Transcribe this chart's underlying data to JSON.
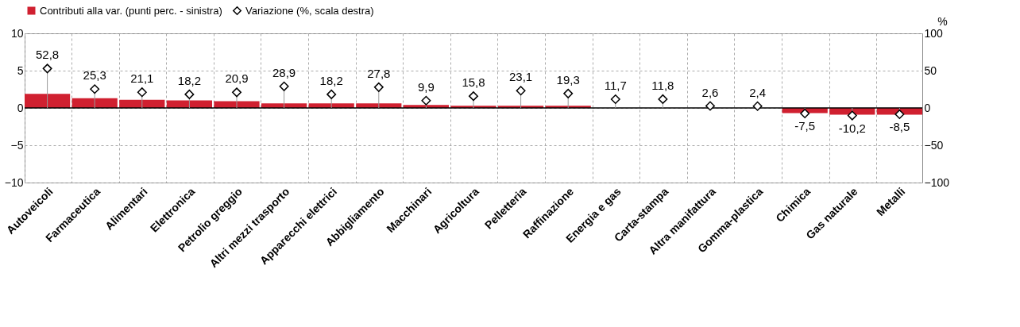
{
  "chart_data": {
    "type": "bar",
    "categories": [
      "Autoveicoli",
      "Farmaceutica",
      "Alimentari",
      "Elettronica",
      "Petrolio greggio",
      "Altri mezzi trasporto",
      "Apparecchi elettrici",
      "Abbigliamento",
      "Macchinari",
      "Agricoltura",
      "Pelletteria",
      "Raffinazione",
      "Energia e gas",
      "Carta-stampa",
      "Altra manifattura",
      "Gomma-plastica",
      "Chimica",
      "Gas naturale",
      "Metalli"
    ],
    "series": [
      {
        "name": "Contributi alla var. (punti perc. - sinistra)",
        "color": "#d02030",
        "values": [
          1.9,
          1.3,
          1.1,
          1.0,
          0.9,
          0.6,
          0.6,
          0.6,
          0.4,
          0.3,
          0.3,
          0.3,
          0.0,
          0.0,
          0.0,
          0.0,
          -0.7,
          -0.9,
          -0.9
        ]
      },
      {
        "name": "Variazione (%, scala destra)",
        "type": "lollipop",
        "axis": "y2",
        "marker": "diamond",
        "color": "#000000",
        "values": [
          52.8,
          25.3,
          21.1,
          18.2,
          20.9,
          28.9,
          18.2,
          27.8,
          9.9,
          15.8,
          23.1,
          19.3,
          11.7,
          11.8,
          2.6,
          2.4,
          -7.5,
          -10.2,
          -8.5
        ],
        "value_labels": [
          "52,8",
          "25,3",
          "21,1",
          "18,2",
          "20,9",
          "28,9",
          "18,2",
          "27,8",
          "9,9",
          "15,8",
          "23,1",
          "19,3",
          "11,7",
          "11,8",
          "2,6",
          "2,4",
          "-7,5",
          "-10,2",
          "-8,5"
        ]
      }
    ],
    "ylim": [
      -10,
      10
    ],
    "yticks": [
      -10,
      -5,
      0,
      5,
      10
    ],
    "y2lim": [
      -100,
      100
    ],
    "y2ticks": [
      -100,
      -50,
      0,
      50,
      100
    ],
    "y2label": "%",
    "grid": true,
    "legend": "top"
  }
}
